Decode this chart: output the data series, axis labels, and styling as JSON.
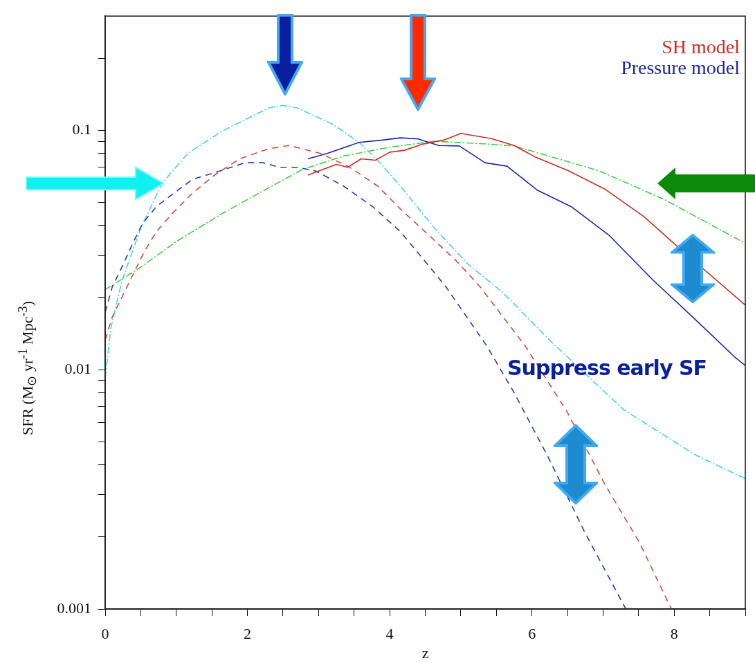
{
  "chart_data": {
    "type": "line",
    "xlabel": "z",
    "ylabel": "SFR (M$_{⊙}$ yr$^{-1}$ Mpc$^{-3}$)",
    "log": "y",
    "xlim": [
      0,
      9
    ],
    "ylim": [
      0.001,
      0.3
    ],
    "xticks": [
      0,
      {
        "value": 0.5,
        "label": null
      },
      {
        "value": 1,
        "label": null
      },
      {
        "value": 1.5,
        "label": null
      },
      2,
      {
        "value": 2.5,
        "label": null
      },
      {
        "value": 3,
        "label": null
      },
      {
        "value": 3.5,
        "label": null
      },
      4,
      {
        "value": 4.5,
        "label": null
      },
      {
        "value": 5,
        "label": null
      },
      {
        "value": 5.5,
        "label": null
      },
      6,
      {
        "value": 6.5,
        "label": null
      },
      {
        "value": 7,
        "label": null
      },
      {
        "value": 7.5,
        "label": null
      },
      8,
      {
        "value": 8.5,
        "label": null
      },
      {
        "value": 9,
        "label": null
      }
    ],
    "yticks": [
      0.001,
      {
        "value": 0.002,
        "label": null
      },
      {
        "value": 0.003,
        "label": null
      },
      {
        "value": 0.004,
        "label": null
      },
      {
        "value": 0.005,
        "label": null
      },
      {
        "value": 0.006,
        "label": null
      },
      {
        "value": 0.007,
        "label": null
      },
      {
        "value": 0.008,
        "label": null
      },
      {
        "value": 0.009,
        "label": null
      },
      0.01,
      {
        "value": 0.02,
        "label": null
      },
      {
        "value": 0.03,
        "label": null
      },
      {
        "value": 0.04,
        "label": null
      },
      {
        "value": 0.05,
        "label": null
      },
      {
        "value": 0.06,
        "label": null
      },
      {
        "value": 0.07,
        "label": null
      },
      {
        "value": 0.08,
        "label": null
      },
      {
        "value": 0.09,
        "label": null
      },
      0.1,
      {
        "value": 0.2,
        "label": null
      }
    ],
    "grid": false,
    "legend": "top right",
    "marker": "none",
    "annotations": [
      "Suppress early SF"
    ],
    "series": [
      {
        "name": "SH model",
        "color": "#d42a1e",
        "line_style": "solid",
        "x": [
          2.85,
          3.25,
          3.41,
          3.6,
          3.8,
          4.0,
          4.21,
          4.47,
          4.76,
          5.0,
          5.43,
          5.75,
          6.05,
          6.52,
          7.02,
          7.57,
          8.04,
          9.0
        ],
        "values": [
          0.065,
          0.072,
          0.07,
          0.076,
          0.075,
          0.081,
          0.0825,
          0.0876,
          0.091,
          0.097,
          0.0923,
          0.0864,
          0.0772,
          0.0676,
          0.0569,
          0.0437,
          0.0328,
          0.0186
        ]
      },
      {
        "name": "Pressure model",
        "color": "#1a27b0",
        "line_style": "solid",
        "x": [
          2.85,
          3.12,
          3.57,
          3.9,
          4.15,
          4.4,
          4.69,
          4.98,
          5.34,
          5.65,
          6.08,
          6.55,
          7.09,
          7.7,
          8.24,
          8.85,
          9.0
        ],
        "values": [
          0.076,
          0.08,
          0.089,
          0.091,
          0.093,
          0.092,
          0.0864,
          0.086,
          0.0732,
          0.0708,
          0.0561,
          0.048,
          0.0363,
          0.0237,
          0.0168,
          0.0113,
          0.0104
        ]
      },
      {
        "color": "#e0463a",
        "line_style": "dashed",
        "x": [
          0,
          0.1,
          0.24,
          0.4,
          0.56,
          0.72,
          0.94,
          1.23,
          1.55,
          1.9,
          2.29,
          2.58,
          3.03,
          3.44,
          3.83,
          4.18,
          4.57,
          4.95,
          5.27,
          5.91,
          6.49,
          7.03,
          7.51,
          7.96
        ],
        "values": [
          0.0133,
          0.0166,
          0.0202,
          0.0253,
          0.0315,
          0.0377,
          0.0448,
          0.0547,
          0.0654,
          0.0762,
          0.0836,
          0.0864,
          0.08,
          0.07,
          0.0585,
          0.046,
          0.036,
          0.0282,
          0.0222,
          0.0125,
          0.0067,
          0.0033,
          0.0019,
          0.001
        ]
      },
      {
        "color": "#2438d0",
        "line_style": "dashed",
        "x": [
          0,
          0.1,
          0.24,
          0.4,
          0.53,
          0.72,
          0.97,
          1.23,
          1.55,
          1.97,
          2.22,
          2.45,
          2.7,
          2.96,
          3.35,
          3.76,
          4.15,
          4.47,
          4.79,
          5.37,
          5.75,
          6.23,
          6.74,
          7.32
        ],
        "values": [
          0.0174,
          0.0222,
          0.027,
          0.0343,
          0.041,
          0.048,
          0.0547,
          0.0624,
          0.0667,
          0.0732,
          0.0732,
          0.07,
          0.07,
          0.0676,
          0.0585,
          0.048,
          0.0377,
          0.029,
          0.0222,
          0.0125,
          0.008,
          0.0043,
          0.0021,
          0.001
        ]
      },
      {
        "color": "#40d8dc",
        "line_style": "dashdot",
        "x": [
          0,
          0.08,
          0.24,
          0.5,
          0.8,
          1.16,
          1.64,
          2.3,
          2.5,
          2.7,
          3.2,
          3.57,
          3.83,
          4.18,
          4.63,
          5.1,
          5.59,
          6.28,
          7.29,
          8.3,
          9.0
        ],
        "values": [
          0.0092,
          0.015,
          0.0237,
          0.039,
          0.06,
          0.08,
          0.099,
          0.124,
          0.127,
          0.124,
          0.106,
          0.089,
          0.075,
          0.057,
          0.039,
          0.0276,
          0.021,
          0.013,
          0.0068,
          0.0044,
          0.0035
        ]
      },
      {
        "color": "#3ad43a",
        "line_style": "dashdot",
        "x": [
          0,
          0.46,
          1.0,
          1.64,
          2.29,
          2.77,
          3.35,
          4.0,
          4.63,
          5.27,
          5.75,
          6.95,
          7.87,
          9.0
        ],
        "values": [
          0.0216,
          0.0263,
          0.0343,
          0.0448,
          0.0573,
          0.0685,
          0.078,
          0.085,
          0.09,
          0.088,
          0.086,
          0.0676,
          0.0512,
          0.0337
        ]
      }
    ]
  }
}
